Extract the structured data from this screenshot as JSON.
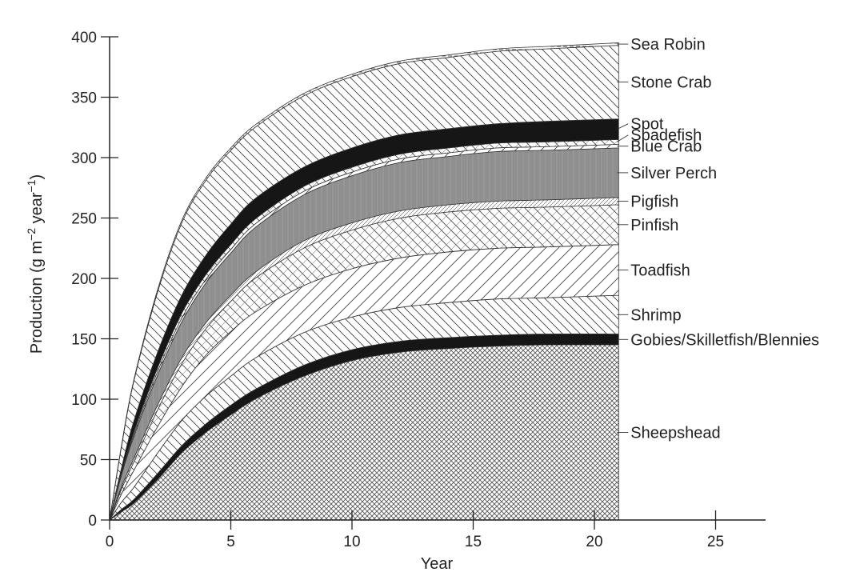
{
  "chart_data": {
    "type": "area",
    "stacked": true,
    "xlabel": "Year",
    "ylabel": "Production (g m",
    "ylabel_sup1": "−2",
    "ylabel_mid": " year",
    "ylabel_sup2": "−1",
    "ylabel_end": ")",
    "xlim": [
      0,
      27
    ],
    "ylim": [
      0,
      400
    ],
    "xticks": [
      "0",
      "5",
      "10",
      "15",
      "20",
      "25"
    ],
    "yticks": [
      "0",
      "50",
      "100",
      "150",
      "200",
      "250",
      "300",
      "350",
      "400"
    ],
    "x": [
      0,
      0.5,
      1,
      2,
      3,
      4,
      5,
      6,
      8,
      10,
      12,
      14,
      16,
      18,
      21
    ],
    "series": [
      {
        "name": "Sheepshead",
        "fill": "crosshatch",
        "values": [
          0,
          7,
          14,
          34,
          56,
          73,
          87,
          100,
          119,
          132,
          139,
          142,
          144,
          145,
          145
        ]
      },
      {
        "name": "Gobies/Skilletfish/Blennies",
        "fill": "solid-black",
        "values": [
          0,
          2,
          3,
          5,
          6,
          7,
          8,
          8,
          9,
          9,
          9,
          9,
          9,
          9,
          9
        ]
      },
      {
        "name": "Shrimp",
        "fill": "diag-fine",
        "values": [
          0,
          6,
          10,
          17,
          21,
          23,
          24,
          26,
          27,
          27,
          28,
          29,
          30,
          30,
          32
        ]
      },
      {
        "name": "Toadfish",
        "fill": "diag-wide",
        "values": [
          0,
          7,
          14,
          22,
          28,
          34,
          37,
          38,
          39,
          40,
          41,
          42,
          42,
          42,
          42
        ]
      },
      {
        "name": "Pinfish",
        "fill": "zigzag",
        "values": [
          0,
          4,
          7,
          14,
          19,
          22,
          25,
          28,
          31,
          32,
          33,
          33,
          33,
          33,
          33
        ]
      },
      {
        "name": "Pigfish",
        "fill": "light-hatch",
        "values": [
          0,
          2,
          3,
          4,
          5,
          5,
          5,
          5,
          6,
          6,
          6,
          6,
          6,
          6,
          6
        ]
      },
      {
        "name": "Silver Perch",
        "fill": "solid-gray",
        "values": [
          0,
          10,
          18,
          25,
          30,
          33,
          35,
          37,
          38,
          39,
          40,
          40,
          41,
          41,
          41
        ]
      },
      {
        "name": "Blue Crab",
        "fill": "diag-wide",
        "values": [
          0,
          1,
          2,
          3,
          3,
          3,
          3,
          3,
          3,
          3,
          3,
          3,
          3,
          3,
          3
        ]
      },
      {
        "name": "Spadefish",
        "fill": "zigzag",
        "values": [
          0,
          1,
          2,
          3,
          4,
          4,
          4,
          4,
          4,
          4,
          4,
          4,
          4,
          4,
          4
        ]
      },
      {
        "name": "Spot",
        "fill": "solid-black",
        "values": [
          0,
          4,
          9,
          13,
          15,
          16,
          17,
          17,
          16,
          16,
          16,
          16,
          16,
          17,
          17
        ]
      },
      {
        "name": "Stone Crab",
        "fill": "diag-fine",
        "values": [
          0,
          18,
          33,
          50,
          60,
          62,
          61,
          59,
          59,
          59,
          59,
          59,
          60,
          60,
          61
        ]
      },
      {
        "name": "Sea Robin",
        "fill": "dashed-thin",
        "values": [
          0,
          1,
          1,
          2,
          2,
          2,
          2,
          2,
          2,
          2,
          2,
          2,
          2,
          2,
          2
        ]
      }
    ]
  }
}
